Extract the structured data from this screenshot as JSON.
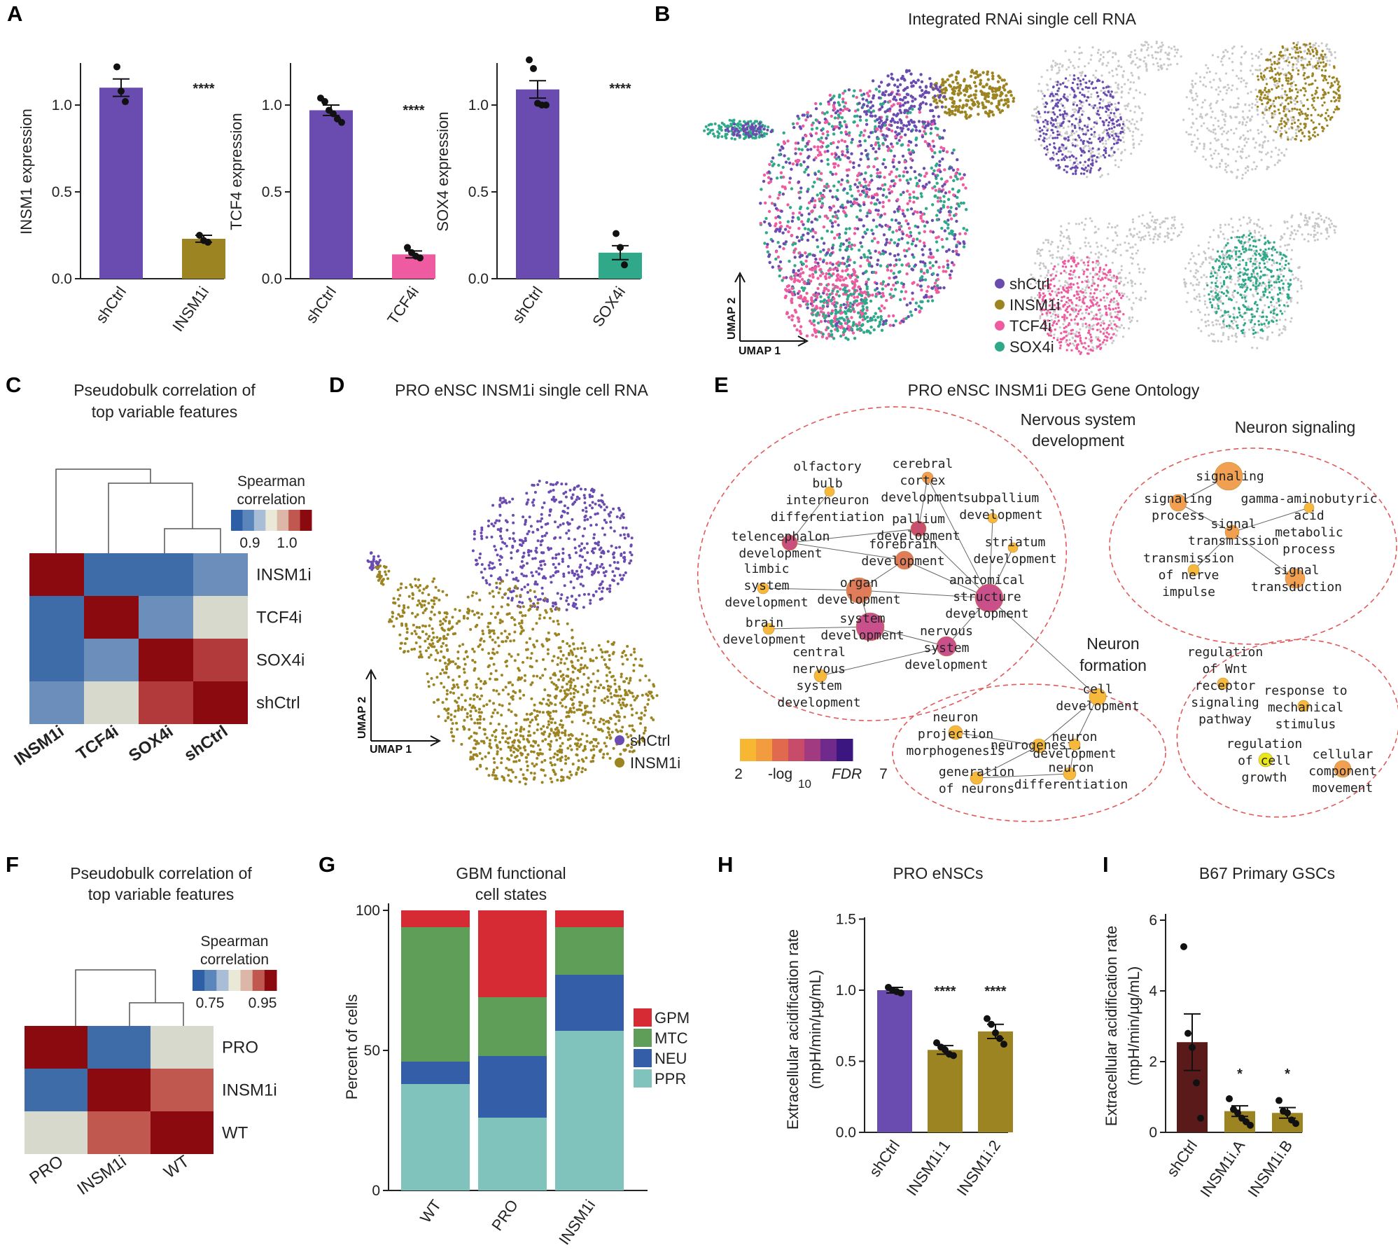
{
  "panel_labels": [
    "A",
    "B",
    "C",
    "D",
    "E",
    "F",
    "G",
    "H",
    "I"
  ],
  "colors": {
    "shCtrl": "#6a4bb0",
    "INSM1i": "#9c8422",
    "TCF4i": "#ee5ba0",
    "SOX4i": "#2fa98a",
    "gray_cells": "#c8c8c8",
    "GPM": "#d62a35",
    "MTC": "#5e9e59",
    "NEU": "#345ea8",
    "PPR": "#7fc3bc",
    "shCtrl_dark": "#5b1a1a"
  },
  "panel_A": {
    "charts": [
      {
        "ylabel": "INSM1 expression",
        "categories": [
          "shCtrl",
          "INSM1i"
        ],
        "values": [
          1.1,
          0.23
        ],
        "errors": [
          0.05,
          0.02
        ],
        "sig": "****",
        "points": [
          [
            1.22,
            1.08,
            1.02
          ],
          [
            0.25,
            0.22,
            0.21
          ]
        ]
      },
      {
        "ylabel": "TCF4 expression",
        "categories": [
          "shCtrl",
          "TCF4i"
        ],
        "values": [
          0.97,
          0.14
        ],
        "errors": [
          0.03,
          0.02
        ],
        "sig": "****",
        "points": [
          [
            1.04,
            1.02,
            0.97,
            0.95,
            0.92,
            0.9
          ],
          [
            0.18,
            0.15,
            0.13,
            0.12
          ]
        ]
      },
      {
        "ylabel": "SOX4 expression",
        "categories": [
          "shCtrl",
          "SOX4i"
        ],
        "values": [
          1.09,
          0.15
        ],
        "errors": [
          0.05,
          0.04
        ],
        "sig": "****",
        "points": [
          [
            1.26,
            1.21,
            1.01,
            1.0,
            1.0
          ],
          [
            0.26,
            0.18,
            0.08
          ]
        ]
      }
    ],
    "yticks": [
      "0.0",
      "0.5",
      "1.0"
    ]
  },
  "panel_B": {
    "title": "Integrated RNAi single cell RNA",
    "legend": [
      "shCtrl",
      "INSM1i",
      "TCF4i",
      "SOX4i"
    ],
    "axis_x": "UMAP 1",
    "axis_y": "UMAP 2"
  },
  "panel_C": {
    "title_1": "Pseudobulk correlation of",
    "title_2": "top variable features",
    "scale_title_1": "Spearman",
    "scale_title_2": "correlation",
    "scale_ticks": [
      "0.9",
      "1.0"
    ],
    "rows": [
      "INSM1i",
      "TCF4i",
      "SOX4i",
      "shCtrl"
    ],
    "cols": [
      "INSM1i",
      "TCF4i",
      "SOX4i",
      "shCtrl"
    ],
    "matrix": [
      [
        "#8b0a0f",
        "#3e6ca8",
        "#3e6ca8",
        "#6b8fba"
      ],
      [
        "#3e6ca8",
        "#8b0a0f",
        "#6b8fba",
        "#d6d9cc"
      ],
      [
        "#3e6ca8",
        "#6b8fba",
        "#8b0a0f",
        "#b33a3a"
      ],
      [
        "#6b8fba",
        "#d6d9cc",
        "#b33a3a",
        "#8b0a0f"
      ]
    ]
  },
  "panel_D": {
    "title": "PRO eNSC INSM1i single cell RNA",
    "legend": [
      "shCtrl",
      "INSM1i"
    ],
    "axis_x": "UMAP 1",
    "axis_y": "UMAP 2"
  },
  "panel_E": {
    "title": "PRO eNSC INSM1i DEG Gene Ontology",
    "clusters": {
      "nervous_1": "Nervous system",
      "nervous_2": "development",
      "neuron_signaling": "Neuron signaling",
      "neuron_formation_1": "Neuron",
      "neuron_formation_2": "formation"
    },
    "colorbar": {
      "min": "2",
      "label_a": "-log",
      "label_sub": "10",
      "label_b": "FDR",
      "max": "7"
    },
    "nodes": [
      {
        "lines": [
          "olfactory",
          "bulb",
          "interneuron",
          "differentiation"
        ]
      },
      {
        "lines": [
          "cerebral",
          "cortex",
          "development"
        ]
      },
      {
        "lines": [
          "subpallium",
          "development"
        ]
      },
      {
        "lines": [
          "pallium",
          "development"
        ]
      },
      {
        "lines": [
          "telencephalon",
          "development"
        ]
      },
      {
        "lines": [
          "forebrain",
          "development"
        ]
      },
      {
        "lines": [
          "striatum",
          "development"
        ]
      },
      {
        "lines": [
          "limbic",
          "system",
          "development"
        ]
      },
      {
        "lines": [
          "organ",
          "development"
        ]
      },
      {
        "lines": [
          "anatomical",
          "structure",
          "development"
        ]
      },
      {
        "lines": [
          "brain",
          "development"
        ]
      },
      {
        "lines": [
          "system",
          "development"
        ]
      },
      {
        "lines": [
          "nervous",
          "system",
          "development"
        ]
      },
      {
        "lines": [
          "central",
          "nervous",
          "system",
          "development"
        ]
      },
      {
        "lines": [
          "signaling"
        ]
      },
      {
        "lines": [
          "signaling",
          "process"
        ]
      },
      {
        "lines": [
          "gamma-aminobutyric",
          "acid",
          "metabolic",
          "process"
        ]
      },
      {
        "lines": [
          "signal",
          "transmission"
        ]
      },
      {
        "lines": [
          "transmission",
          "of nerve",
          "impulse"
        ]
      },
      {
        "lines": [
          "signal",
          "transduction"
        ]
      },
      {
        "lines": [
          "cell",
          "development"
        ]
      },
      {
        "lines": [
          "neuron",
          "projection",
          "morphogenesis"
        ]
      },
      {
        "lines": [
          "neurogenesis"
        ]
      },
      {
        "lines": [
          "neuron",
          "development"
        ]
      },
      {
        "lines": [
          "generation",
          "of neurons"
        ]
      },
      {
        "lines": [
          "neuron",
          "differentiation"
        ]
      },
      {
        "lines": [
          "regulation",
          "of Wnt",
          "receptor",
          "signaling",
          "pathway"
        ]
      },
      {
        "lines": [
          "response to",
          "mechanical",
          "stimulus"
        ]
      },
      {
        "lines": [
          "regulation",
          "of cell",
          "growth"
        ]
      },
      {
        "lines": [
          "cellular",
          "component",
          "movement"
        ]
      }
    ]
  },
  "panel_F": {
    "title_1": "Pseudobulk correlation of",
    "title_2": "top variable features",
    "scale_title_1": "Spearman",
    "scale_title_2": "correlation",
    "scale_ticks": [
      "0.75",
      "0.95"
    ],
    "rows": [
      "PRO",
      "INSM1i",
      "WT"
    ],
    "cols": [
      "PRO",
      "INSM1i",
      "WT"
    ],
    "matrix": [
      [
        "#8b0a0f",
        "#3e6ca8",
        "#d6d9cc"
      ],
      [
        "#3e6ca8",
        "#8b0a0f",
        "#c0584f"
      ],
      [
        "#d6d9cc",
        "#c0584f",
        "#8b0a0f"
      ]
    ]
  },
  "panel_G": {
    "title_1": "GBM functional",
    "title_2": "cell states",
    "ylabel": "Percent of cells",
    "yticks": [
      "0",
      "50",
      "100"
    ],
    "legend": [
      "GPM",
      "MTC",
      "NEU",
      "PPR"
    ]
  },
  "panel_H": {
    "title": "PRO eNSCs",
    "ylabel_1": "Extracellular acidification rate",
    "ylabel_2": "(mpH/min/µg/mL)",
    "yticks": [
      "0.0",
      "0.5",
      "1.0",
      "1.5"
    ],
    "sig": [
      "****",
      "****"
    ]
  },
  "panel_I": {
    "title": "B67 Primary GSCs",
    "ylabel_1": "Extracellular acidification rate",
    "ylabel_2": "(mpH/min/µg/mL)",
    "yticks": [
      "0",
      "2",
      "4",
      "6"
    ],
    "sig": [
      "*",
      "*"
    ]
  },
  "chart_data": [
    {
      "type": "bar",
      "title": "",
      "xlabel": "",
      "ylabel": "Percent of cells",
      "categories": [
        "WT",
        "PRO",
        "INSM1i"
      ],
      "ylim": [
        0,
        100
      ],
      "stacked": true,
      "series": [
        {
          "name": "PPR",
          "values": [
            38,
            26,
            57
          ]
        },
        {
          "name": "NEU",
          "values": [
            8,
            22,
            20
          ]
        },
        {
          "name": "MTC",
          "values": [
            48,
            21,
            17
          ]
        },
        {
          "name": "GPM",
          "values": [
            6,
            31,
            6
          ]
        }
      ]
    },
    {
      "type": "bar",
      "title": "PRO eNSCs",
      "xlabel": "",
      "ylabel": "Extracellular acidification rate (mpH/min/µg/mL)",
      "categories": [
        "shCtrl",
        "INSM1i.1",
        "INSM1i.2"
      ],
      "values": [
        1.0,
        0.58,
        0.71
      ],
      "errors": [
        0.02,
        0.03,
        0.05
      ],
      "points": [
        [
          1.02,
          1.0,
          0.99,
          0.98
        ],
        [
          0.63,
          0.6,
          0.58,
          0.55,
          0.54
        ],
        [
          0.8,
          0.76,
          0.7,
          0.66,
          0.62
        ]
      ],
      "ylim": [
        0,
        1.5
      ]
    },
    {
      "type": "bar",
      "title": "B67 Primary GSCs",
      "xlabel": "",
      "ylabel": "Extracellular acidification rate (mpH/min/µg/mL)",
      "categories": [
        "shCtrl",
        "INSM1i.A",
        "INSM1i.B"
      ],
      "values": [
        2.55,
        0.6,
        0.55
      ],
      "errors": [
        0.8,
        0.15,
        0.15
      ],
      "points": [
        [
          5.25,
          2.8,
          2.4,
          1.4,
          0.4
        ],
        [
          0.95,
          0.65,
          0.55,
          0.4,
          0.3,
          0.2
        ],
        [
          0.9,
          0.6,
          0.55,
          0.35,
          0.25
        ]
      ],
      "ylim": [
        0,
        6
      ]
    }
  ]
}
